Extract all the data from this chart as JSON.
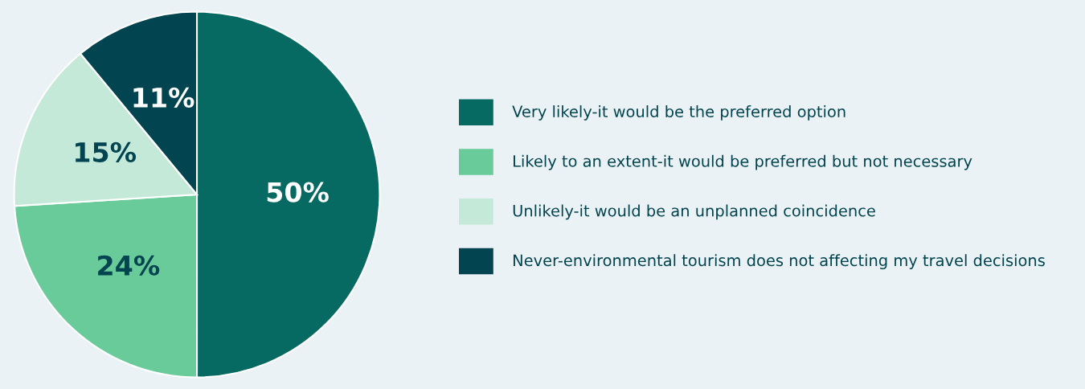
{
  "chart_data": {
    "type": "pie",
    "categories": [
      "Very likely-it would be the preferred option",
      "Likely to an extent-it would be preferred but not necessary",
      "Unlikely-it would be an unplanned coincidence",
      "Never-environmental tourism does not affecting my travel decisions"
    ],
    "values": [
      50,
      24,
      15,
      11
    ],
    "colors": [
      "#066a63",
      "#6acb9a",
      "#c5e9d8",
      "#02444f"
    ],
    "value_labels": [
      "50%",
      "24%",
      "15%",
      "11%"
    ],
    "legend": "right"
  }
}
